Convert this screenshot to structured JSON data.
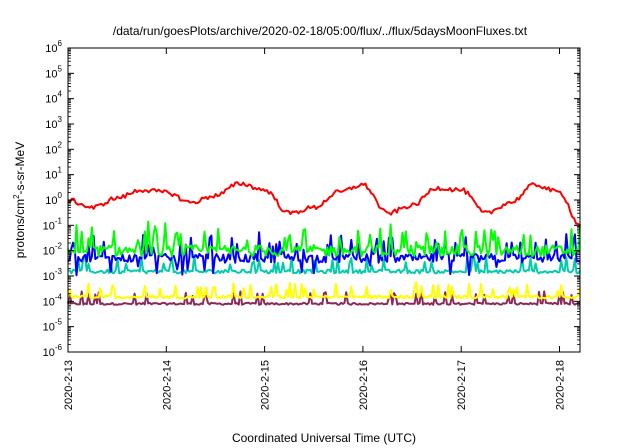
{
  "chart_data": {
    "type": "line",
    "title": "/data/run/goesPlots/archive/2020-02-18/05:00/flux/../flux/5daysMoonFluxes.txt",
    "xlabel": "Coordinated Universal Time (UTC)",
    "ylabel_parts": {
      "base": "protons/cm",
      "sup": "2",
      "rest": "-s-sr-MeV"
    },
    "yscale": "log",
    "ylim_exponent": [
      -6,
      6
    ],
    "y_tick_labels": [
      {
        "base": "10",
        "exp": "-6"
      },
      {
        "base": "10",
        "exp": "-5"
      },
      {
        "base": "10",
        "exp": "-4"
      },
      {
        "base": "10",
        "exp": "-3"
      },
      {
        "base": "10",
        "exp": "-2"
      },
      {
        "base": "10",
        "exp": "-1"
      },
      {
        "base": "10",
        "exp": "0"
      },
      {
        "base": "10",
        "exp": "1"
      },
      {
        "base": "10",
        "exp": "2"
      },
      {
        "base": "10",
        "exp": "3"
      },
      {
        "base": "10",
        "exp": "4"
      },
      {
        "base": "10",
        "exp": "5"
      },
      {
        "base": "10",
        "exp": "6"
      }
    ],
    "x_tick_labels": [
      "2020-2-13",
      "2020-2-14",
      "2020-2-15",
      "2020-2-16",
      "2020-2-17",
      "2020-2-18"
    ],
    "xlim": [
      "2020-02-13T00:00",
      "2020-02-18T05:00"
    ],
    "grid": false,
    "series": [
      {
        "color": "#ff0000",
        "amp": 0.6,
        "base": -0.1,
        "spikes": false,
        "points": [
          [
            "2020-02-13T00:00",
            1.0
          ],
          [
            "2020-02-13T06:00",
            0.5
          ],
          [
            "2020-02-13T12:00",
            1.2
          ],
          [
            "2020-02-13T18:00",
            2.5
          ],
          [
            "2020-02-14T00:00",
            2.0
          ],
          [
            "2020-02-14T06:00",
            0.8
          ],
          [
            "2020-02-14T12:00",
            1.5
          ],
          [
            "2020-02-14T18:00",
            4.5
          ],
          [
            "2020-02-15T00:00",
            2.5
          ],
          [
            "2020-02-15T06:00",
            0.3
          ],
          [
            "2020-02-15T12:00",
            0.5
          ],
          [
            "2020-02-15T18:00",
            2.0
          ],
          [
            "2020-02-16T00:00",
            4.0
          ],
          [
            "2020-02-16T06:00",
            0.3
          ],
          [
            "2020-02-16T12:00",
            0.6
          ],
          [
            "2020-02-16T18:00",
            3.0
          ],
          [
            "2020-02-17T00:00",
            2.5
          ],
          [
            "2020-02-17T06:00",
            0.3
          ],
          [
            "2020-02-17T12:00",
            0.8
          ],
          [
            "2020-02-17T18:00",
            4.0
          ],
          [
            "2020-02-18T00:00",
            2.0
          ],
          [
            "2020-02-18T05:00",
            0.1
          ]
        ]
      },
      {
        "color": "#00ff00",
        "base": 0.01,
        "spread": 0.45,
        "spikes": true,
        "spike_up": 1.0
      },
      {
        "color": "#0000ff",
        "base": 0.005,
        "spread": 0.35,
        "spikes": true,
        "spike_up": 0.9,
        "spike_down": 0.7
      },
      {
        "color": "#00ccaa",
        "base": 0.0015,
        "spread": 0.15,
        "spikes": true,
        "spike_up": 0.6
      },
      {
        "color": "#ffff00",
        "base": 0.00015,
        "spread": 0.12,
        "spikes": true,
        "spike_up": 0.55
      },
      {
        "color": "#8b2a5a",
        "base": 8e-05,
        "spread": 0.08,
        "spikes": true,
        "spike_up": 0.5
      }
    ]
  }
}
